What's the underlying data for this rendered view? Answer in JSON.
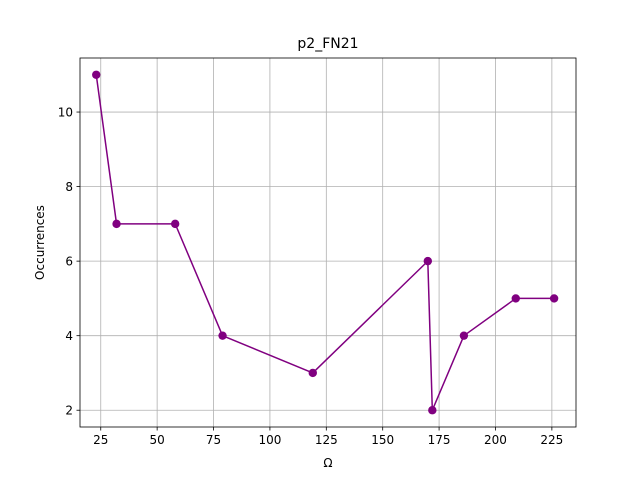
{
  "chart_data": {
    "type": "line",
    "title": "p2_FN21",
    "xlabel": "Ω",
    "ylabel": "Occurrences",
    "xlim": [
      15.8,
      235.7
    ],
    "ylim": [
      1.55,
      11.45
    ],
    "xticks": [
      25,
      50,
      75,
      100,
      125,
      150,
      175,
      200,
      225
    ],
    "yticks": [
      2,
      4,
      6,
      8,
      10
    ],
    "grid": true,
    "series": [
      {
        "color": "#800080",
        "marker": "circle",
        "x": [
          23,
          32,
          58,
          79,
          119,
          170,
          172,
          186,
          209,
          226
        ],
        "y": [
          11,
          7,
          7,
          4,
          3,
          6,
          2,
          4,
          5,
          5
        ]
      }
    ]
  }
}
